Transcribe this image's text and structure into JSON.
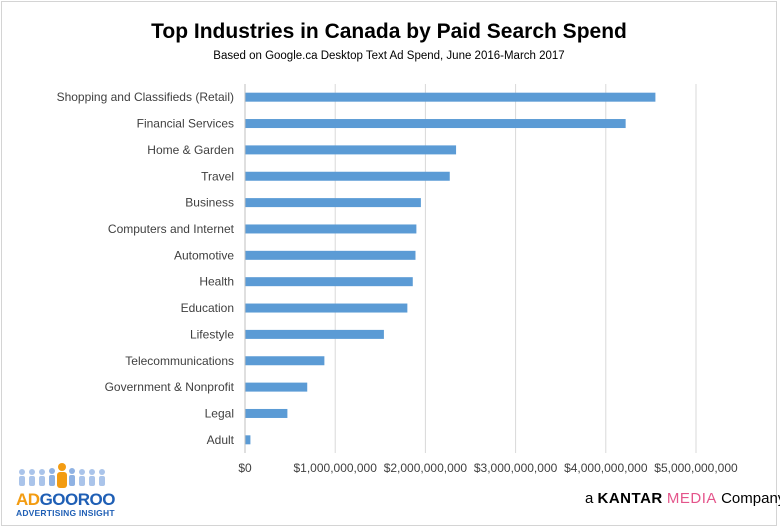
{
  "chart_data": {
    "type": "bar",
    "orientation": "horizontal",
    "title": "Top Industries in Canada by Paid Search Spend",
    "subtitle": "Based on Google.ca Desktop Text Ad Spend, June 2016-March 2017",
    "categories": [
      "Shopping and Classifieds (Retail)",
      "Financial Services",
      "Home & Garden",
      "Travel",
      "Business",
      "Computers and Internet",
      "Automotive",
      "Health",
      "Education",
      "Lifestyle",
      "Telecommunications",
      "Government & Nonprofit",
      "Legal",
      "Adult"
    ],
    "values": [
      4550000000,
      4220000000,
      2340000000,
      2270000000,
      1950000000,
      1900000000,
      1890000000,
      1860000000,
      1800000000,
      1540000000,
      880000000,
      690000000,
      470000000,
      60000000
    ],
    "xlim": [
      0,
      5000000000
    ],
    "xticks": [
      0,
      1000000000,
      2000000000,
      3000000000,
      4000000000,
      5000000000
    ],
    "xtick_labels": [
      "$0",
      "$1,000,000,000",
      "$2,000,000,000",
      "$3,000,000,000",
      "$4,000,000,000",
      "$5,000,000,000"
    ],
    "xlabel": "",
    "ylabel": "",
    "grid": "vertical",
    "bar_color": "#5b9bd5",
    "legend": "none"
  },
  "branding": {
    "left_logo_word_part1": "AD",
    "left_logo_word_part2": "GOOROO",
    "left_logo_tagline": "ADVERTISING INSIGHT",
    "right_logo_prefix": "a",
    "right_logo_brand": "KANTAR",
    "right_logo_media": "MEDIA",
    "right_logo_suffix": "Company",
    "colors": {
      "adgooroo_orange": "#f39c12",
      "adgooroo_blue": "#1f5fb5",
      "media_pink": "#e4558b"
    }
  }
}
